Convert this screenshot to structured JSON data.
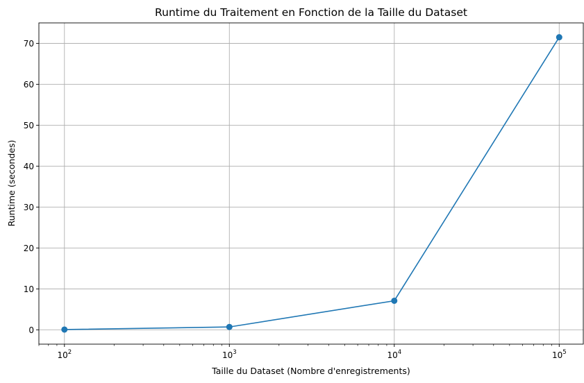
{
  "chart_data": {
    "type": "line",
    "title": "Runtime du Traitement en Fonction de la Taille du Dataset",
    "xlabel": "Taille du Dataset (Nombre d'enregistrements)",
    "ylabel": "Runtime (secondes)",
    "x_scale": "log",
    "xlim": [
      70,
      140000
    ],
    "ylim": [
      -3.5,
      75
    ],
    "x_ticks": [
      {
        "value": 100,
        "base": "10",
        "exp": "2"
      },
      {
        "value": 1000,
        "base": "10",
        "exp": "3"
      },
      {
        "value": 10000,
        "base": "10",
        "exp": "4"
      },
      {
        "value": 100000,
        "base": "10",
        "exp": "5"
      }
    ],
    "y_ticks": [
      0,
      10,
      20,
      30,
      40,
      50,
      60,
      70
    ],
    "grid": true,
    "series": [
      {
        "color": "#1f77b4",
        "marker": "circle",
        "x": [
          100,
          1000,
          10000,
          100000
        ],
        "y": [
          0.07,
          0.7,
          7.1,
          71.5
        ]
      }
    ]
  }
}
